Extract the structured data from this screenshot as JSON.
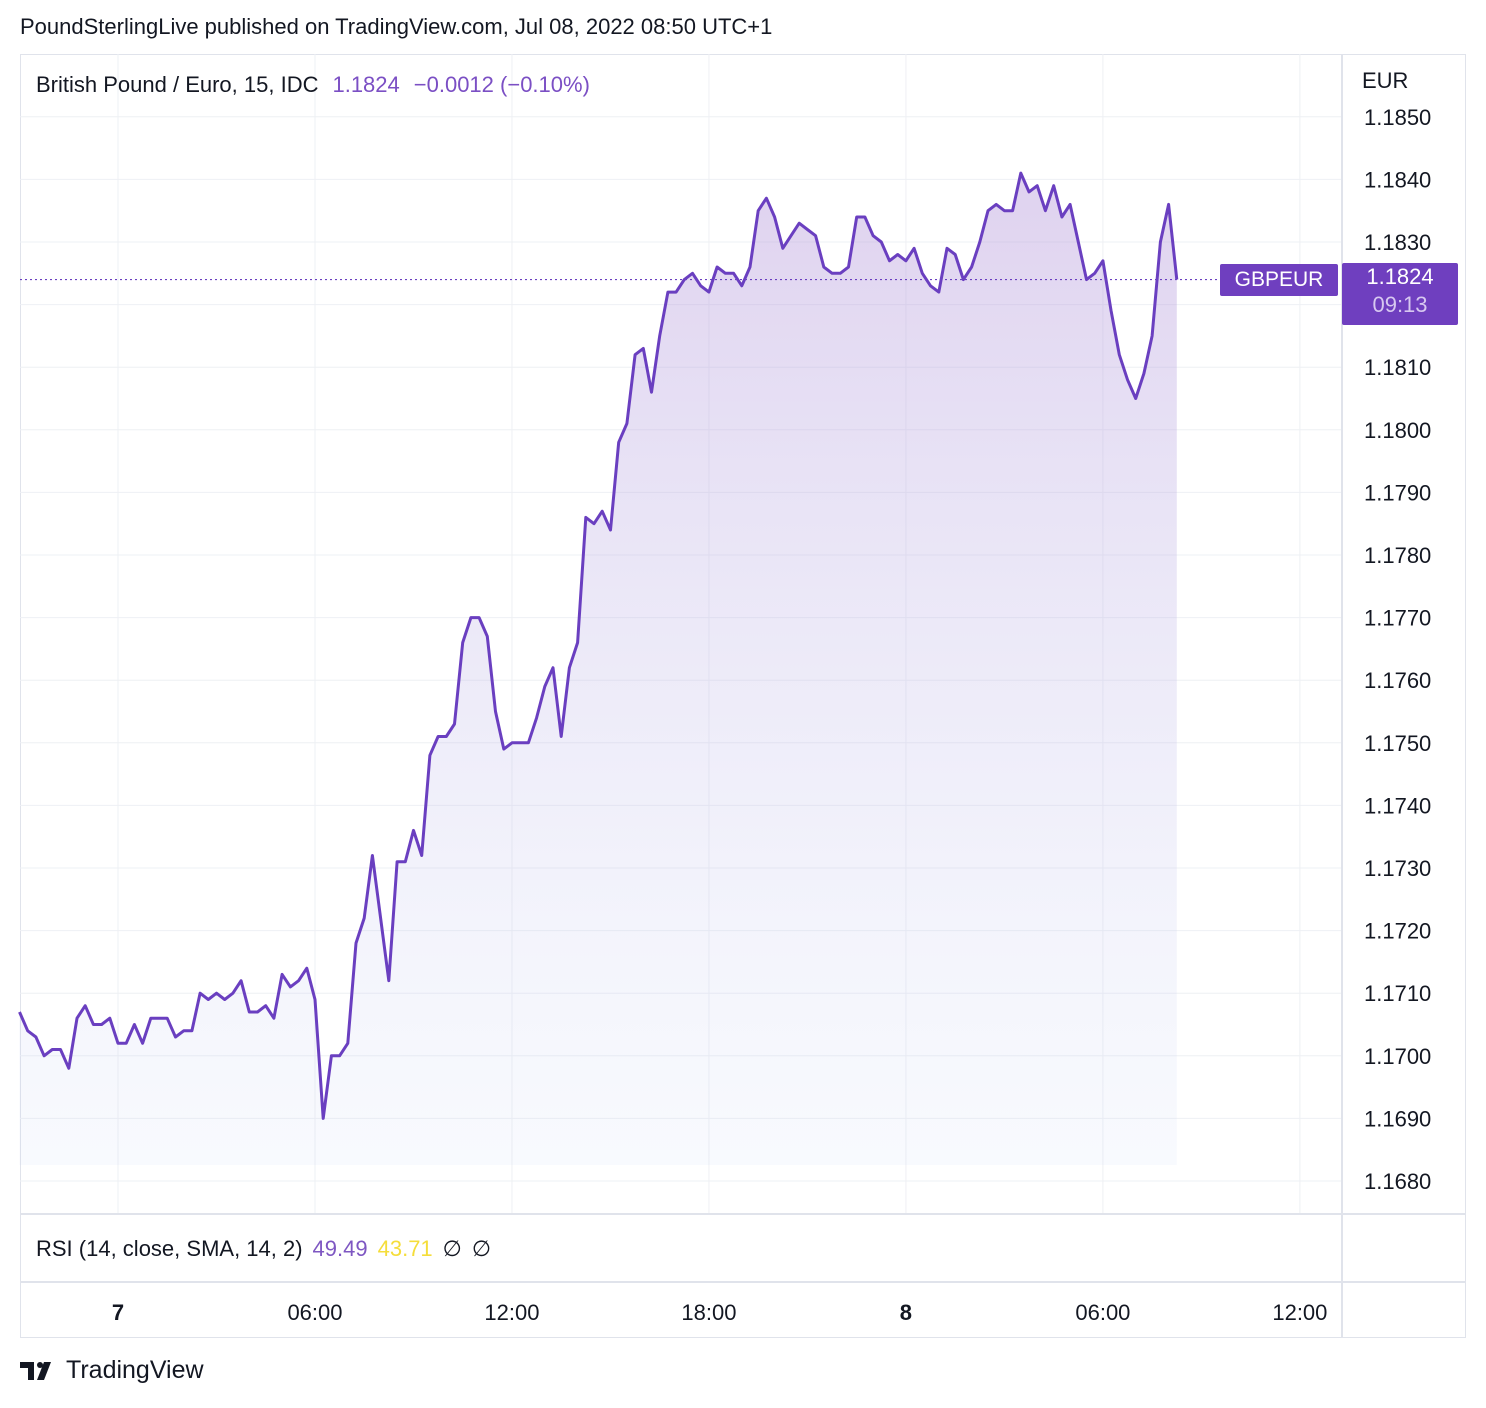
{
  "published_by": "PoundSterlingLive published on TradingView.com, Jul 08, 2022 08:50 UTC+1",
  "legend": {
    "symbol": "British Pound / Euro, 15, IDC",
    "last": "1.1824",
    "change": "−0.0012 (−0.10%)"
  },
  "rsi": {
    "label": "RSI (14, close, SMA, 14, 2)",
    "value": "49.49",
    "sma_value": "43.71",
    "na1": "∅",
    "na2": "∅"
  },
  "price_scale": {
    "unit": "EUR"
  },
  "current": {
    "ticker": "GBPEUR",
    "price": "1.1824",
    "countdown": "09:13"
  },
  "footer": {
    "brand": "TradingView"
  },
  "colors": {
    "line": "#6a3fc0",
    "rsi": "#7e57c2",
    "rsi_sma": "#f5dd3a",
    "grid": "#eef0f4"
  },
  "chart_data": {
    "type": "area",
    "ylim": [
      1.1675,
      1.1855
    ],
    "yticks": [
      "1.1850",
      "1.1840",
      "1.1830",
      "1.1810",
      "1.1800",
      "1.1790",
      "1.1780",
      "1.1770",
      "1.1760",
      "1.1750",
      "1.1740",
      "1.1730",
      "1.1720",
      "1.1710",
      "1.1700",
      "1.1690",
      "1.1680"
    ],
    "xticks": [
      {
        "label": "7",
        "t": 0,
        "bold": true
      },
      {
        "label": "06:00",
        "t": 6,
        "bold": false
      },
      {
        "label": "12:00",
        "t": 12,
        "bold": false
      },
      {
        "label": "18:00",
        "t": 18,
        "bold": false
      },
      {
        "label": "8",
        "t": 24,
        "bold": true
      },
      {
        "label": "06:00",
        "t": 30,
        "bold": false
      },
      {
        "label": "12:00",
        "t": 36,
        "bold": false
      }
    ],
    "series": [
      {
        "values": [
          [
            -3.0,
            1.1707
          ],
          [
            -2.75,
            1.1704
          ],
          [
            -2.5,
            1.1703
          ],
          [
            -2.25,
            1.17
          ],
          [
            -2.0,
            1.1701
          ],
          [
            -1.75,
            1.1701
          ],
          [
            -1.5,
            1.1698
          ],
          [
            -1.25,
            1.1706
          ],
          [
            -1.0,
            1.1708
          ],
          [
            -0.75,
            1.1705
          ],
          [
            -0.5,
            1.1705
          ],
          [
            -0.25,
            1.1706
          ],
          [
            0.0,
            1.1702
          ],
          [
            0.25,
            1.1702
          ],
          [
            0.5,
            1.1705
          ],
          [
            0.75,
            1.1702
          ],
          [
            1.0,
            1.1706
          ],
          [
            1.25,
            1.1706
          ],
          [
            1.5,
            1.1706
          ],
          [
            1.75,
            1.1703
          ],
          [
            2.0,
            1.1704
          ],
          [
            2.25,
            1.1704
          ],
          [
            2.5,
            1.171
          ],
          [
            2.75,
            1.1709
          ],
          [
            3.0,
            1.171
          ],
          [
            3.25,
            1.1709
          ],
          [
            3.5,
            1.171
          ],
          [
            3.75,
            1.1712
          ],
          [
            4.0,
            1.1707
          ],
          [
            4.25,
            1.1707
          ],
          [
            4.5,
            1.1708
          ],
          [
            4.75,
            1.1706
          ],
          [
            5.0,
            1.1713
          ],
          [
            5.25,
            1.1711
          ],
          [
            5.5,
            1.1712
          ],
          [
            5.75,
            1.1714
          ],
          [
            6.0,
            1.1709
          ],
          [
            6.25,
            1.169
          ],
          [
            6.5,
            1.17
          ],
          [
            6.75,
            1.17
          ],
          [
            7.0,
            1.1702
          ],
          [
            7.25,
            1.1718
          ],
          [
            7.5,
            1.1722
          ],
          [
            7.75,
            1.1732
          ],
          [
            8.0,
            1.1722
          ],
          [
            8.25,
            1.1712
          ],
          [
            8.5,
            1.1731
          ],
          [
            8.75,
            1.1731
          ],
          [
            9.0,
            1.1736
          ],
          [
            9.25,
            1.1732
          ],
          [
            9.5,
            1.1748
          ],
          [
            9.75,
            1.1751
          ],
          [
            10.0,
            1.1751
          ],
          [
            10.25,
            1.1753
          ],
          [
            10.5,
            1.1766
          ],
          [
            10.75,
            1.177
          ],
          [
            11.0,
            1.177
          ],
          [
            11.25,
            1.1767
          ],
          [
            11.5,
            1.1755
          ],
          [
            11.75,
            1.1749
          ],
          [
            12.0,
            1.175
          ],
          [
            12.25,
            1.175
          ],
          [
            12.5,
            1.175
          ],
          [
            12.75,
            1.1754
          ],
          [
            13.0,
            1.1759
          ],
          [
            13.25,
            1.1762
          ],
          [
            13.5,
            1.1751
          ],
          [
            13.75,
            1.1762
          ],
          [
            14.0,
            1.1766
          ],
          [
            14.25,
            1.1786
          ],
          [
            14.5,
            1.1785
          ],
          [
            14.75,
            1.1787
          ],
          [
            15.0,
            1.1784
          ],
          [
            15.25,
            1.1798
          ],
          [
            15.5,
            1.1801
          ],
          [
            15.75,
            1.1812
          ],
          [
            16.0,
            1.1813
          ],
          [
            16.25,
            1.1806
          ],
          [
            16.5,
            1.1815
          ],
          [
            16.75,
            1.1822
          ],
          [
            17.0,
            1.1822
          ],
          [
            17.25,
            1.1824
          ],
          [
            17.5,
            1.1825
          ],
          [
            17.75,
            1.1823
          ],
          [
            18.0,
            1.1822
          ],
          [
            18.25,
            1.1826
          ],
          [
            18.5,
            1.1825
          ],
          [
            18.75,
            1.1825
          ],
          [
            19.0,
            1.1823
          ],
          [
            19.25,
            1.1826
          ],
          [
            19.5,
            1.1835
          ],
          [
            19.75,
            1.1837
          ],
          [
            20.0,
            1.1834
          ],
          [
            20.25,
            1.1829
          ],
          [
            20.5,
            1.1831
          ],
          [
            20.75,
            1.1833
          ],
          [
            21.0,
            1.1832
          ],
          [
            21.25,
            1.1831
          ],
          [
            21.5,
            1.1826
          ],
          [
            21.75,
            1.1825
          ],
          [
            22.0,
            1.1825
          ],
          [
            22.25,
            1.1826
          ],
          [
            22.5,
            1.1834
          ],
          [
            22.75,
            1.1834
          ],
          [
            23.0,
            1.1831
          ],
          [
            23.25,
            1.183
          ],
          [
            23.5,
            1.1827
          ],
          [
            23.75,
            1.1828
          ],
          [
            24.0,
            1.1827
          ],
          [
            24.25,
            1.1829
          ],
          [
            24.5,
            1.1825
          ],
          [
            24.75,
            1.1823
          ],
          [
            25.0,
            1.1822
          ],
          [
            25.25,
            1.1829
          ],
          [
            25.5,
            1.1828
          ],
          [
            25.75,
            1.1824
          ],
          [
            26.0,
            1.1826
          ],
          [
            26.25,
            1.183
          ],
          [
            26.5,
            1.1835
          ],
          [
            26.75,
            1.1836
          ],
          [
            27.0,
            1.1835
          ],
          [
            27.25,
            1.1835
          ],
          [
            27.5,
            1.1841
          ],
          [
            27.75,
            1.1838
          ],
          [
            28.0,
            1.1839
          ],
          [
            28.25,
            1.1835
          ],
          [
            28.5,
            1.1839
          ],
          [
            28.75,
            1.1834
          ],
          [
            29.0,
            1.1836
          ],
          [
            29.25,
            1.183
          ],
          [
            29.5,
            1.1824
          ],
          [
            29.75,
            1.1825
          ],
          [
            30.0,
            1.1827
          ],
          [
            30.25,
            1.1819
          ],
          [
            30.5,
            1.1812
          ],
          [
            30.75,
            1.1808
          ],
          [
            31.0,
            1.1805
          ],
          [
            31.25,
            1.1809
          ],
          [
            31.5,
            1.1815
          ],
          [
            31.75,
            1.183
          ],
          [
            32.0,
            1.1836
          ],
          [
            32.25,
            1.1824
          ]
        ]
      }
    ]
  }
}
